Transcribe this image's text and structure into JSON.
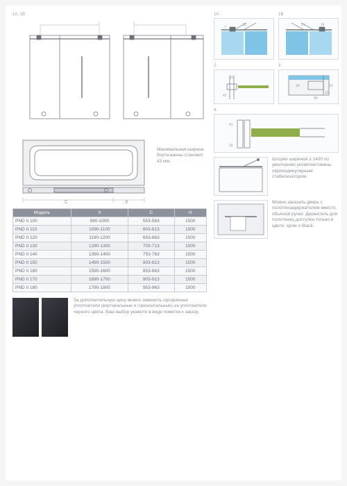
{
  "main_label": "1A, 1B",
  "main_note": "Минимальная ширина борта ванны становит 43 мм.",
  "tub_labels": {
    "c": "C",
    "x": "X"
  },
  "table": {
    "headers": [
      "Модель",
      "X",
      "C",
      "H"
    ],
    "rows": [
      [
        "PND II 100",
        "990-1000",
        "553-563",
        "1500"
      ],
      [
        "PND II 110",
        "1090-1100",
        "603-613",
        "1500"
      ],
      [
        "PND II 120",
        "1190-1200",
        "653-663",
        "1500"
      ],
      [
        "PND II 130",
        "1290-1300",
        "703-713",
        "1500"
      ],
      [
        "PND II 140",
        "1390-1400",
        "753-763",
        "1500"
      ],
      [
        "PND II 150",
        "1490-1500",
        "803-813",
        "1500"
      ],
      [
        "PND II 160",
        "1590-1600",
        "853-863",
        "1500"
      ],
      [
        "PND II 170",
        "1690-1700",
        "903-913",
        "1500"
      ],
      [
        "PND II 180",
        "1790-1800",
        "953-963",
        "1500"
      ]
    ]
  },
  "note_bottom_left": "За дополнительную цену можно заменить прозрачные уплотнители (вертикальные и горизонтальные) на уплотнители черного цвета. Ваш выбор укажите в виде пометки к заказу.",
  "right": {
    "labels": {
      "a": "1A",
      "b": "1B",
      "n2": "2.",
      "n3": "3.",
      "n4": "4."
    },
    "dims": {
      "d20": "20",
      "d7": "7",
      "d14": "14",
      "d21": "21",
      "d31": "31",
      "d42": "42",
      "d18": "18",
      "d45": "45",
      "d10": "10",
      "d13": "13",
      "d41": "41",
      "d30": "30"
    },
    "note_stab": "Шторки шириной ≥ 1400 по умолчанию укомплектованы перпендикулярным стабилизатором.",
    "note_towel": "Можно заказать дверь с полотенцедержателем вместо обычной ручки. Держатель для полотенец доступен только в цвете: хром и Black."
  },
  "colors": {
    "line": "#6b6f78",
    "light": "#c8cbd1",
    "glass": "#a7d8f0",
    "glass2": "#7fc4e6",
    "accent": "#7fa23c",
    "bg": "#fafbfc"
  }
}
